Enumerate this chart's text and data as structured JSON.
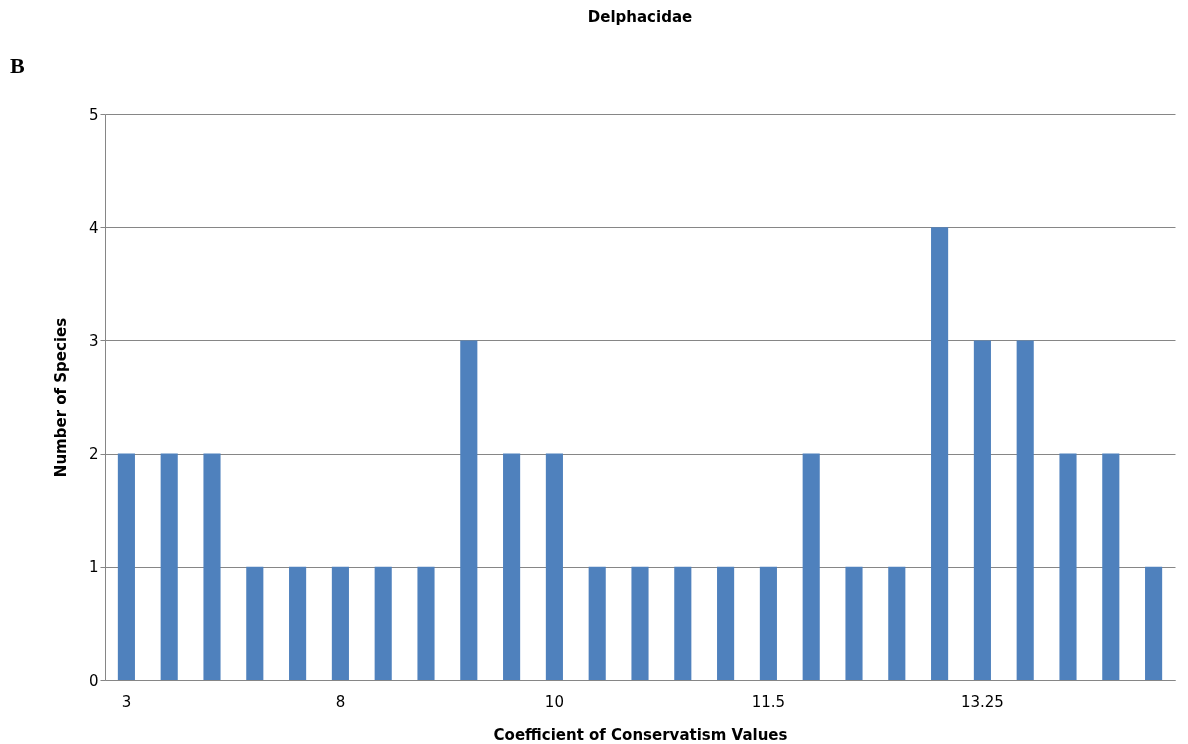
{
  "chart_data": {
    "type": "bar",
    "title": "Delphacidae",
    "xlabel": "Coefficient of Conservatism Values",
    "ylabel": "Number of Species",
    "annotations": [
      "B"
    ],
    "categories": [
      "3",
      null,
      null,
      null,
      null,
      "8",
      null,
      null,
      null,
      null,
      "10",
      null,
      null,
      null,
      null,
      "11.5",
      null,
      null,
      null,
      null,
      "13.25",
      null,
      null,
      null,
      null
    ],
    "values": [
      2,
      2,
      2,
      1,
      1,
      1,
      1,
      1,
      3,
      2,
      2,
      1,
      1,
      1,
      1,
      1,
      2,
      1,
      1,
      4,
      3,
      3,
      2,
      2,
      1
    ],
    "color": "#4f81bd",
    "ylim": [
      0,
      5
    ],
    "yticks": [
      0,
      1,
      2,
      3,
      4,
      5
    ],
    "grid": "y"
  }
}
